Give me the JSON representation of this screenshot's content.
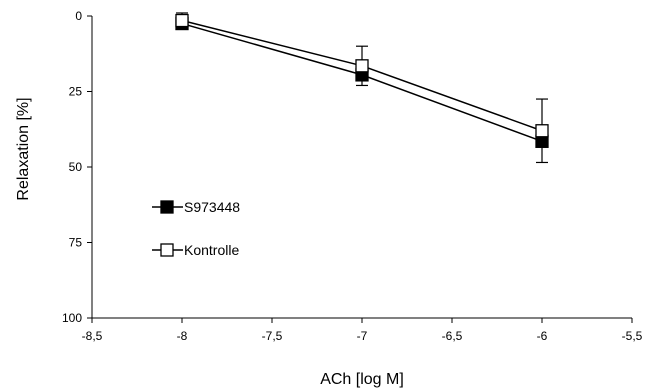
{
  "chart_data": {
    "type": "line",
    "xlabel": "ACh [log M]",
    "ylabel": "Relaxation [%]",
    "xlim": [
      -8.5,
      -5.5
    ],
    "ylim": [
      0,
      100
    ],
    "y_inverted": true,
    "grid": false,
    "legend_position": "left-center",
    "x_ticks": [
      "-8,5",
      "-8",
      "-7,5",
      "-7",
      "-6,5",
      "-6",
      "-5,5"
    ],
    "x_tick_values": [
      -8.5,
      -8,
      -7.5,
      -7,
      -6.5,
      -6,
      -5.5
    ],
    "y_ticks": [
      "0",
      "25",
      "50",
      "75",
      "100"
    ],
    "y_tick_values": [
      0,
      25,
      50,
      75,
      100
    ],
    "x": [
      -8,
      -7,
      -6
    ],
    "series": [
      {
        "name": "S973448",
        "marker": "filled-square",
        "color": "#000000",
        "values": [
          2.5,
          19.5,
          41.5
        ],
        "error_low": [
          3.5,
          9.5,
          14
        ],
        "error_high": [
          1.5,
          0,
          0
        ]
      },
      {
        "name": "Kontrolle",
        "marker": "open-square",
        "color": "#000000",
        "values": [
          1.5,
          16.5,
          38
        ],
        "error_low": [
          0,
          0,
          0
        ],
        "error_high": [
          0,
          6.5,
          10.5
        ]
      }
    ]
  }
}
